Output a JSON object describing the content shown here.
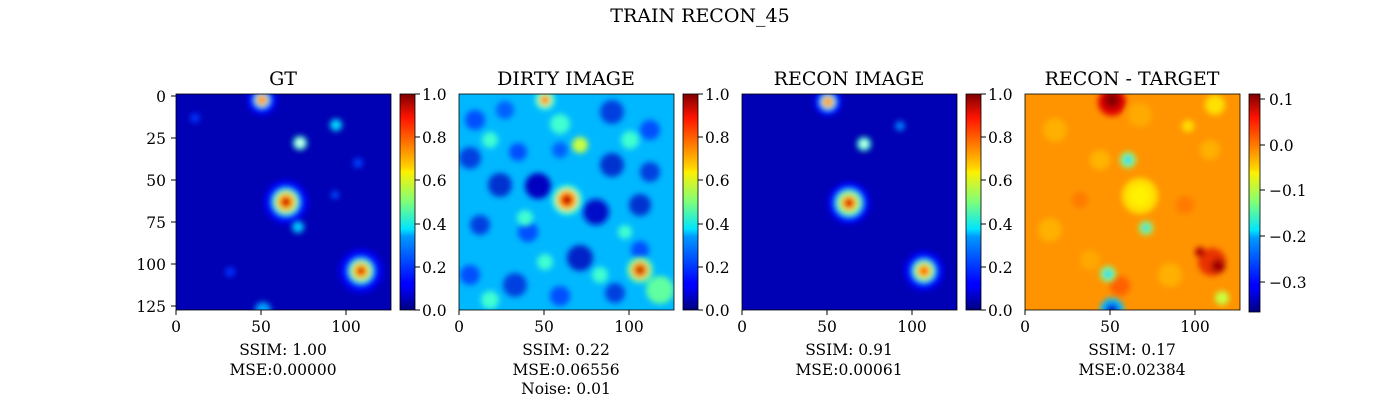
{
  "figure": {
    "title": "TRAIN RECON_45"
  },
  "chart_data": [
    {
      "type": "heatmap",
      "title": "GT",
      "colormap": "jet",
      "xlim": [
        0,
        127
      ],
      "ylim": [
        127,
        0
      ],
      "xticks": [
        0,
        50,
        100
      ],
      "yticks": [
        0,
        25,
        50,
        75,
        100,
        125
      ],
      "colorbar": {
        "range": [
          0.0,
          1.0
        ],
        "ticks": [
          "0.0",
          "0.2",
          "0.4",
          "0.6",
          "0.8",
          "1.0"
        ]
      },
      "caption": [
        "SSIM: 1.00",
        "MSE:0.00000"
      ]
    },
    {
      "type": "heatmap",
      "title": "DIRTY IMAGE",
      "colormap": "jet",
      "xlim": [
        0,
        127
      ],
      "ylim": [
        127,
        0
      ],
      "xticks": [
        0,
        50,
        100
      ],
      "colorbar": {
        "range": [
          0.0,
          1.0
        ],
        "ticks": [
          "0.0",
          "0.2",
          "0.4",
          "0.6",
          "0.8",
          "1.0"
        ]
      },
      "caption": [
        "SSIM: 0.22",
        "MSE:0.06556",
        "Noise: 0.01"
      ]
    },
    {
      "type": "heatmap",
      "title": "RECON IMAGE",
      "colormap": "jet",
      "xlim": [
        0,
        127
      ],
      "ylim": [
        127,
        0
      ],
      "xticks": [
        0,
        50,
        100
      ],
      "colorbar": {
        "range": [
          0.0,
          1.0
        ],
        "ticks": [
          "0.0",
          "0.2",
          "0.4",
          "0.6",
          "0.8",
          "1.0"
        ]
      },
      "caption": [
        "SSIM: 0.91",
        "MSE:0.00061"
      ]
    },
    {
      "type": "heatmap",
      "title": "RECON - TARGET",
      "colormap": "jet",
      "xlim": [
        0,
        127
      ],
      "ylim": [
        127,
        0
      ],
      "xticks": [
        0,
        50,
        100
      ],
      "colorbar": {
        "range": [
          -0.36,
          0.11
        ],
        "ticks": [
          "0.1",
          "0.0",
          "−0.1",
          "−0.2",
          "−0.3"
        ]
      },
      "caption": [
        "SSIM: 0.17",
        "MSE:0.02384"
      ]
    }
  ]
}
